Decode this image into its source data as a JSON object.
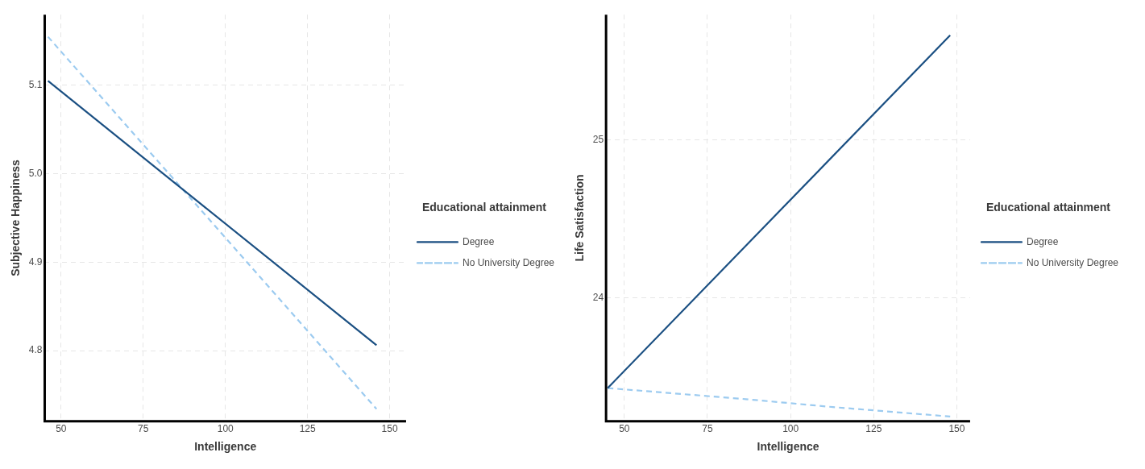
{
  "chart_data": [
    {
      "type": "line",
      "xlabel": "Intelligence",
      "ylabel": "Subjective Happiness",
      "legend_title": "Educational attainment",
      "legend": "right",
      "grid": true,
      "marker": "none",
      "xlim": [
        45,
        155
      ],
      "xticks": [
        50,
        75,
        100,
        125,
        150
      ],
      "ylim": [
        4.72,
        5.18
      ],
      "yticks": [
        4.8,
        4.9,
        {
          "value": 5,
          "label": "5.0"
        },
        5.1
      ],
      "series": [
        {
          "name": "Degree",
          "color": "#1a4f82",
          "line_style": "solid",
          "x": [
            46,
            146
          ],
          "values": [
            5.105,
            4.806
          ]
        },
        {
          "name": "No University Degree",
          "color": "#9ccbf0",
          "line_style": "dashed",
          "x": [
            46,
            146
          ],
          "values": [
            5.155,
            4.734
          ]
        }
      ]
    },
    {
      "type": "line",
      "xlabel": "Intelligence",
      "ylabel": "Life Satisfaction",
      "legend_title": "Educational attainment",
      "legend": "right",
      "grid": true,
      "marker": "none",
      "xlim": [
        44.5,
        154
      ],
      "xticks": [
        50,
        75,
        100,
        125,
        150
      ],
      "ylim": [
        23.22,
        25.79
      ],
      "yticks": [
        24,
        25
      ],
      "series": [
        {
          "name": "Degree",
          "color": "#1a4f82",
          "line_style": "solid",
          "x": [
            45,
            148
          ],
          "values": [
            23.43,
            25.66
          ]
        },
        {
          "name": "No University Degree",
          "color": "#9ccbf0",
          "line_style": "dashed",
          "x": [
            45,
            86.5,
            112.7,
            148
          ],
          "values": [
            23.43,
            23.36,
            23.31,
            23.25
          ]
        }
      ]
    }
  ]
}
